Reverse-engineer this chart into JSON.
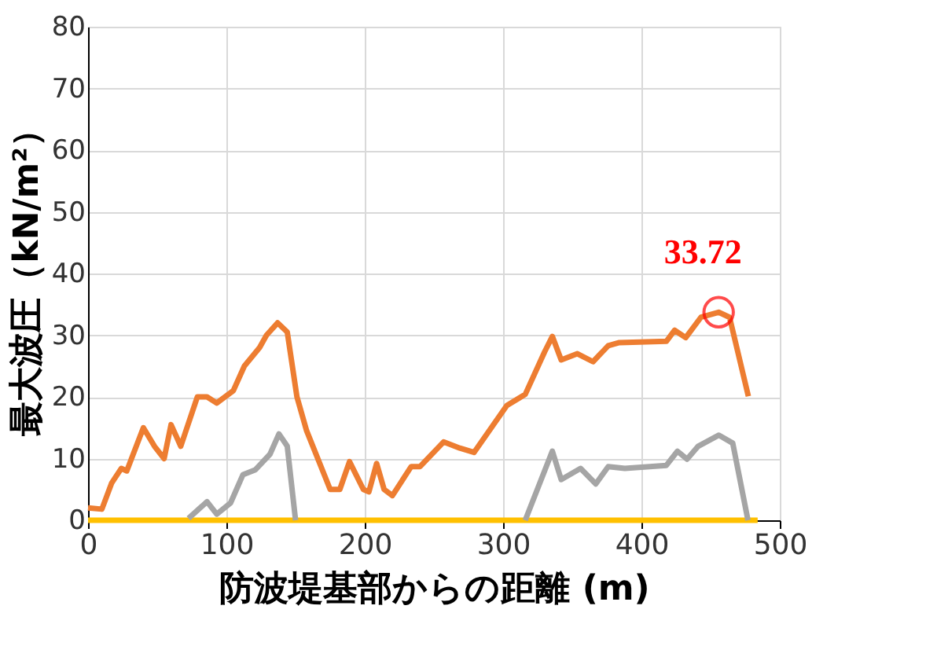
{
  "chart_data": {
    "type": "line",
    "xlabel": "防波堤基部からの距離 (m)",
    "ylabel": "最大波圧（kN/m²）",
    "xlim": [
      0,
      500
    ],
    "xticks": [
      0,
      100,
      200,
      300,
      400,
      500
    ],
    "ylim": [
      0,
      80
    ],
    "yticks": [
      0,
      10,
      20,
      30,
      40,
      50,
      60,
      70,
      80
    ],
    "grid": true,
    "marker": "none",
    "line_style": "solid",
    "annotations": [
      {
        "text": "33.72",
        "x": 455.8,
        "y": 33.72
      }
    ],
    "series": [
      {
        "color": "#ffc000",
        "x": [
          0,
          484
        ],
        "values": [
          0,
          0
        ]
      },
      {
        "color": "#a5a5a5",
        "x": [
          72.6,
          86,
          93,
          103,
          112,
          121,
          131.5,
          138,
          144,
          150,
          230,
          316,
          335.6,
          342,
          356,
          367,
          376,
          388,
          418,
          426,
          433,
          441,
          456,
          466,
          477
        ],
        "values": [
          0.3,
          3,
          1,
          2.8,
          7.4,
          8.2,
          10.7,
          14,
          12,
          0,
          null,
          0,
          11.2,
          6.6,
          8.4,
          5.9,
          8.7,
          8.4,
          8.9,
          11.2,
          9.9,
          12,
          13.8,
          12.5,
          0
        ]
      },
      {
        "color": "#ed7d31",
        "x": [
          0,
          10,
          17,
          24,
          28,
          40,
          48,
          55,
          60,
          67,
          79,
          86,
          93,
          105,
          113,
          124,
          129,
          137,
          144,
          151,
          158,
          175,
          182,
          189,
          199,
          203,
          208.6,
          214,
          220,
          233.6,
          240,
          257,
          268.7,
          279,
          302.7,
          316,
          330,
          335.6,
          342,
          353.7,
          365,
          376,
          384,
          418,
          424,
          432,
          443,
          455.8,
          463.7,
          477.3
        ],
        "values": [
          2,
          1.8,
          6,
          8.4,
          8,
          15,
          12,
          10,
          15.5,
          12,
          20,
          20,
          19,
          21,
          25,
          28,
          30,
          32,
          30.5,
          20,
          14.5,
          5,
          5,
          9.5,
          5,
          4.6,
          9.2,
          5,
          4,
          8.7,
          8.7,
          12.7,
          11.7,
          11,
          18.6,
          20.4,
          27.3,
          29.8,
          26,
          27,
          25.7,
          28.3,
          28.8,
          29,
          30.8,
          29.6,
          32.9,
          33.72,
          32.9,
          20.1
        ]
      }
    ]
  }
}
